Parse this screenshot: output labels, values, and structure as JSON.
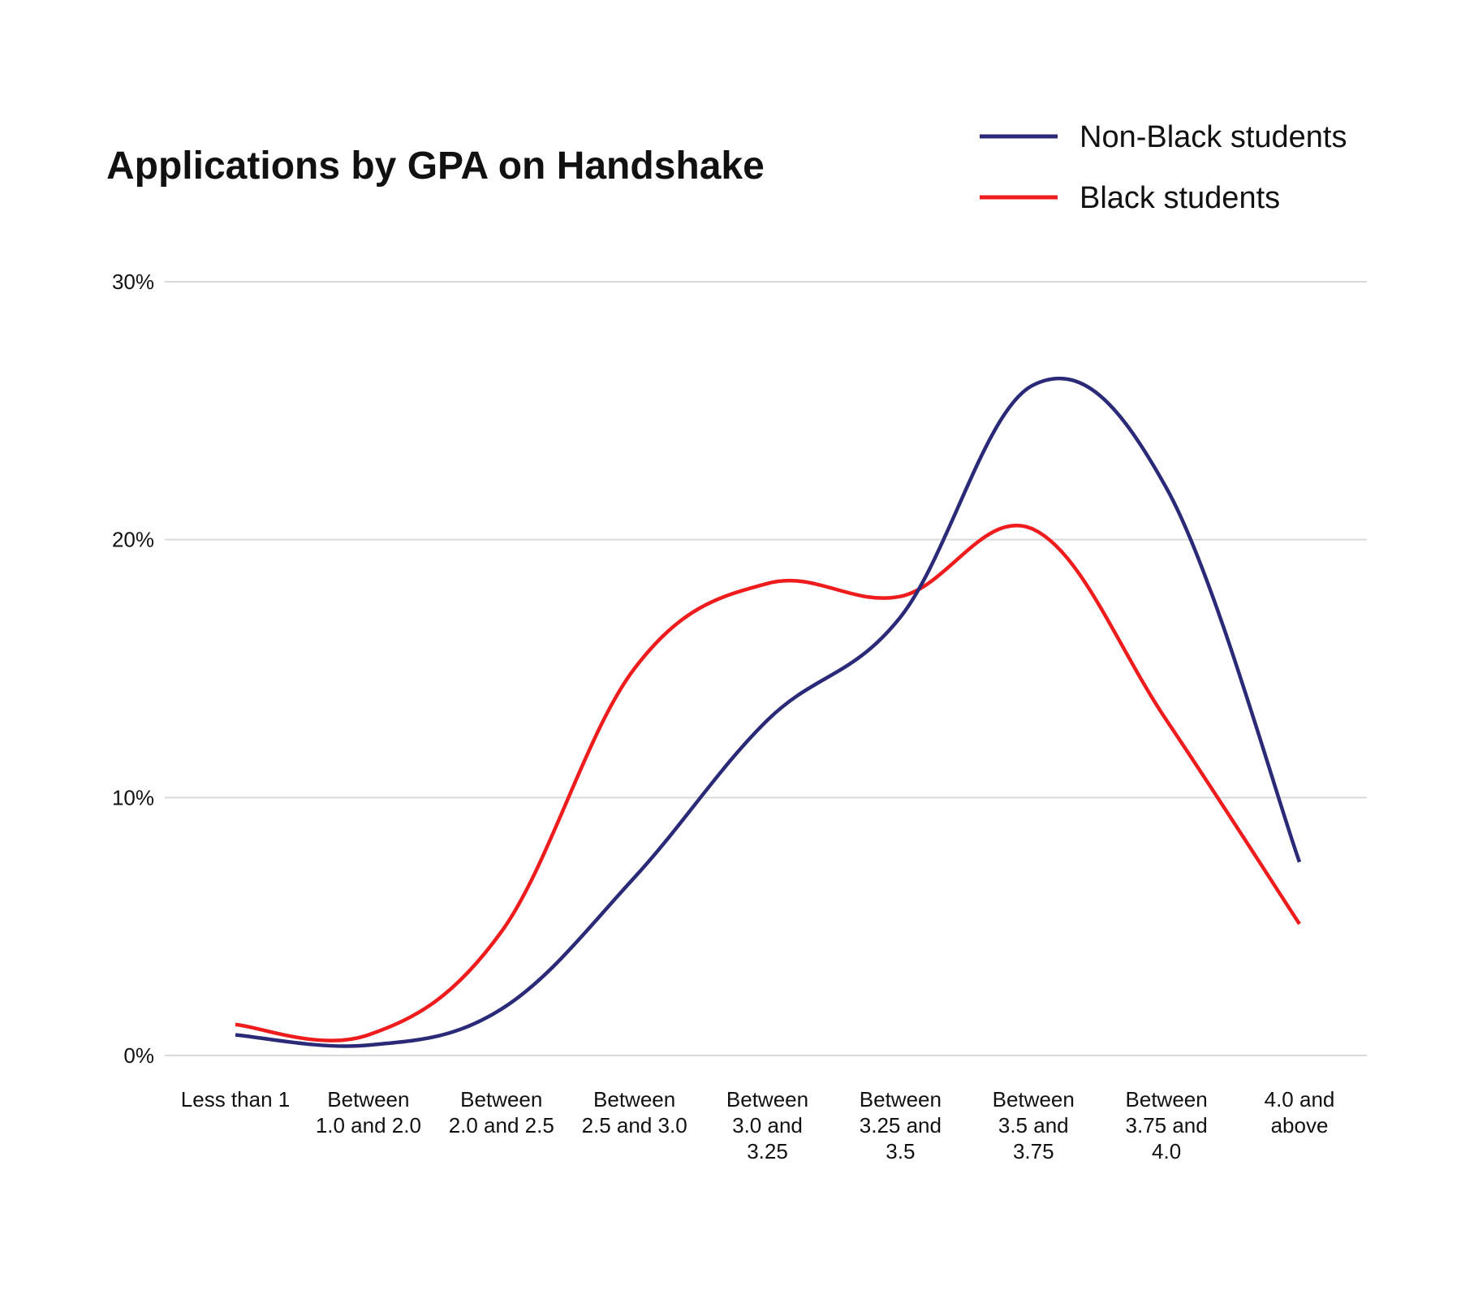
{
  "chart_data": {
    "type": "line",
    "title": "Applications by GPA on Handshake",
    "xlabel": "",
    "ylabel": "",
    "ylim": [
      0,
      30
    ],
    "yticks": [
      0,
      10,
      20,
      30
    ],
    "ytick_labels": [
      "0%",
      "10%",
      "20%",
      "30%"
    ],
    "grid": true,
    "legend_position": "top-right",
    "categories": [
      [
        "Less than 1"
      ],
      [
        "Between",
        "1.0 and 2.0"
      ],
      [
        "Between",
        "2.0 and 2.5"
      ],
      [
        "Between",
        "2.5 and 3.0"
      ],
      [
        "Between",
        "3.0 and",
        "3.25"
      ],
      [
        "Between",
        "3.25 and",
        "3.5"
      ],
      [
        "Between",
        "3.5 and",
        "3.75"
      ],
      [
        "Between",
        "3.75 and",
        "4.0"
      ],
      [
        "4.0 and",
        "above"
      ]
    ],
    "series": [
      {
        "name": "Non-Black students",
        "color": "#2b2a78",
        "values": [
          0.8,
          0.4,
          1.8,
          6.9,
          13.0,
          17.0,
          26.0,
          22.0,
          7.5
        ]
      },
      {
        "name": "Black students",
        "color": "#ee1c1c",
        "values": [
          1.2,
          0.8,
          4.8,
          15.0,
          18.3,
          17.8,
          20.4,
          13.0,
          5.1
        ]
      }
    ]
  }
}
